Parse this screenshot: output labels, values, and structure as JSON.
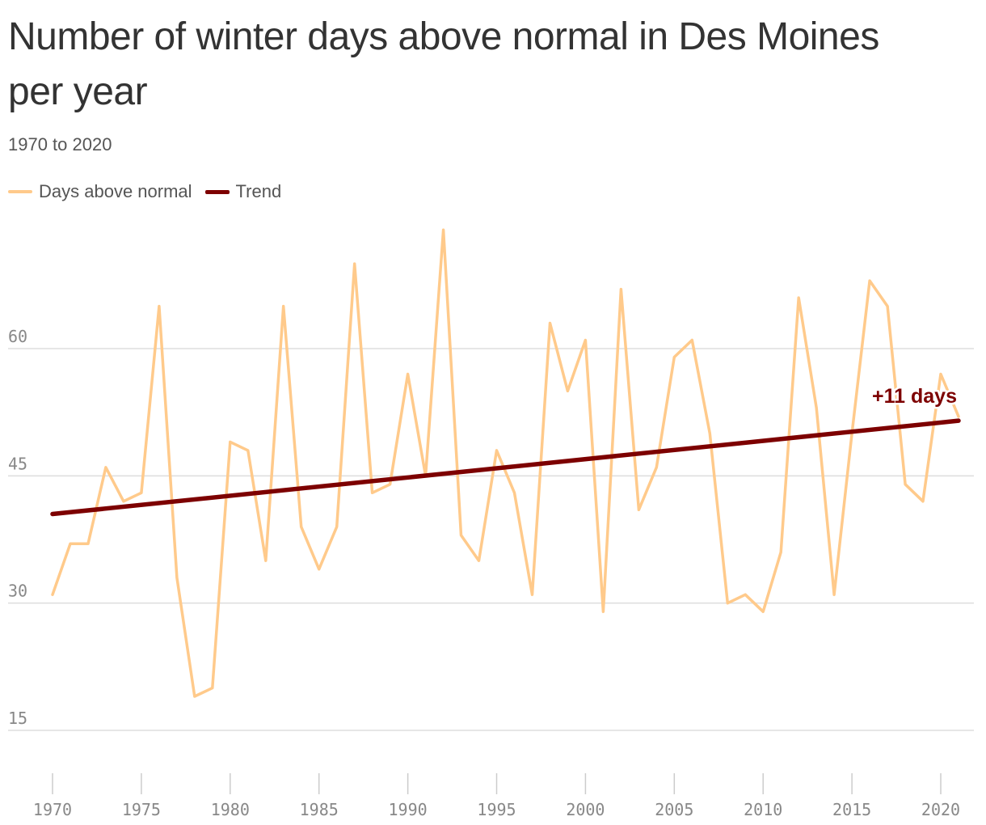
{
  "chart_data": {
    "type": "line",
    "title": "Number of winter days above normal in Des Moines per year",
    "subtitle": "1970 to 2020",
    "ylim": [
      10,
      65
    ],
    "y_ticks": [
      15,
      30,
      45,
      60
    ],
    "x_ticks": [
      1970,
      1975,
      1980,
      1985,
      1990,
      1995,
      2000,
      2005,
      2010,
      2015,
      2020
    ],
    "xlim": [
      1970,
      2021
    ],
    "grid": true,
    "legend_placement": "top-left",
    "x": [
      1970,
      1971,
      1972,
      1973,
      1974,
      1975,
      1976,
      1977,
      1978,
      1979,
      1980,
      1981,
      1982,
      1983,
      1984,
      1985,
      1986,
      1987,
      1988,
      1989,
      1990,
      1991,
      1992,
      1993,
      1994,
      1995,
      1996,
      1997,
      1998,
      1999,
      2000,
      2001,
      2002,
      2003,
      2004,
      2005,
      2006,
      2007,
      2008,
      2009,
      2010,
      2011,
      2012,
      2013,
      2014,
      2015,
      2016,
      2017,
      2018,
      2019,
      2020,
      2021
    ],
    "series": [
      {
        "name": "Days above normal",
        "color": "#ffca8b",
        "values": [
          31,
          37,
          37,
          46,
          42,
          43,
          65,
          33,
          19,
          20,
          49,
          48,
          35,
          65,
          39,
          34,
          39,
          70,
          43,
          44,
          57,
          45,
          74,
          38,
          35,
          48,
          43,
          31,
          63,
          55,
          61,
          29,
          67,
          41,
          46,
          59,
          61,
          50,
          30,
          31,
          29,
          36,
          66,
          53,
          31,
          50,
          68,
          65,
          44,
          42,
          57,
          52
        ]
      },
      {
        "name": "Trend",
        "color": "#7d0000",
        "x": [
          1970,
          2021
        ],
        "values": [
          40.5,
          51.5
        ]
      }
    ],
    "annotation": {
      "text": "+11 days",
      "color": "#7d0000",
      "x": 2021,
      "y": 51.5
    }
  }
}
